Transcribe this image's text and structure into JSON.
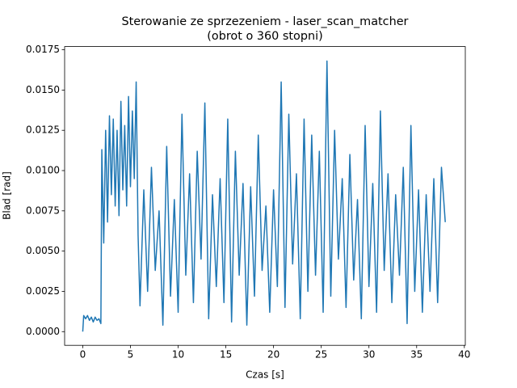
{
  "chart_data": {
    "type": "line",
    "title": "Sterowanie ze sprzezeniem - laser_scan_matcher",
    "subtitle": "(obrot o 360 stopni)",
    "x_label": "Czas [s]",
    "y_label": "Blad [rad]",
    "x": [
      0,
      0.1,
      0.3,
      0.5,
      0.7,
      0.9,
      1.1,
      1.3,
      1.5,
      1.7,
      1.9,
      2.0,
      2.2,
      2.4,
      2.6,
      2.8,
      3.0,
      3.2,
      3.4,
      3.6,
      3.8,
      4.0,
      4.2,
      4.4,
      4.6,
      4.8,
      5.0,
      5.2,
      5.4,
      5.6,
      5.8,
      6.0,
      6.4,
      6.8,
      7.2,
      7.6,
      8.0,
      8.4,
      8.8,
      9.2,
      9.6,
      10.0,
      10.4,
      10.8,
      11.2,
      11.6,
      12.0,
      12.4,
      12.8,
      13.2,
      13.6,
      14.0,
      14.4,
      14.8,
      15.2,
      15.6,
      16.0,
      16.4,
      16.8,
      17.2,
      17.6,
      18.0,
      18.4,
      18.8,
      19.2,
      19.6,
      20.0,
      20.4,
      20.8,
      21.2,
      21.6,
      22.0,
      22.4,
      22.8,
      23.2,
      23.6,
      24.0,
      24.4,
      24.8,
      25.2,
      25.6,
      26.0,
      26.4,
      26.8,
      27.2,
      27.6,
      28.0,
      28.4,
      28.8,
      29.2,
      29.6,
      30.0,
      30.4,
      30.8,
      31.2,
      31.6,
      32.0,
      32.4,
      32.8,
      33.2,
      33.6,
      34.0,
      34.4,
      34.8,
      35.2,
      35.6,
      36.0,
      36.4,
      36.8,
      37.2,
      37.6,
      38.0
    ],
    "series": [
      {
        "color": "#1f77b4",
        "values": [
          0,
          0.001,
          0.0008,
          0.001,
          0.0007,
          0.0009,
          0.0006,
          0.0009,
          0.0007,
          0.0008,
          0.0005,
          0.0113,
          0.0055,
          0.0125,
          0.0068,
          0.0134,
          0.0085,
          0.0132,
          0.0078,
          0.0125,
          0.0072,
          0.0143,
          0.0088,
          0.0128,
          0.0078,
          0.0146,
          0.009,
          0.0137,
          0.0095,
          0.0155,
          0.006,
          0.0016,
          0.0088,
          0.0025,
          0.0102,
          0.0038,
          0.0075,
          0.0004,
          0.0115,
          0.0022,
          0.0082,
          0.0012,
          0.0135,
          0.0035,
          0.0098,
          0.0018,
          0.0112,
          0.0045,
          0.0142,
          0.0008,
          0.0085,
          0.0028,
          0.0095,
          0.0018,
          0.0132,
          0.0006,
          0.0112,
          0.0035,
          0.0092,
          0.0004,
          0.009,
          0.0022,
          0.0122,
          0.0038,
          0.0078,
          0.0012,
          0.0088,
          0.0028,
          0.0155,
          0.0015,
          0.0135,
          0.0042,
          0.0098,
          0.0008,
          0.0132,
          0.0025,
          0.0122,
          0.0035,
          0.0112,
          0.0012,
          0.0168,
          0.0022,
          0.0125,
          0.0045,
          0.0095,
          0.0015,
          0.011,
          0.0032,
          0.0082,
          0.0008,
          0.0128,
          0.0028,
          0.0092,
          0.0012,
          0.0137,
          0.0038,
          0.0098,
          0.0018,
          0.0085,
          0.0035,
          0.0102,
          0.0005,
          0.0128,
          0.0025,
          0.0088,
          0.0012,
          0.0085,
          0.0025,
          0.0095,
          0.0018,
          0.0102,
          0.0068
        ]
      }
    ],
    "xlim": [
      -1.9,
      40.1
    ],
    "xticks": [
      0,
      5,
      10,
      15,
      20,
      25,
      30,
      35,
      40
    ],
    "ylim": [
      -0.00085,
      0.0177
    ],
    "yticks": [
      {
        "value": 0,
        "label": "0.0000"
      },
      {
        "value": 0.0025,
        "label": "0.0025"
      },
      {
        "value": 0.005,
        "label": "0.0050"
      },
      {
        "value": 0.0075,
        "label": "0.0075"
      },
      {
        "value": 0.01,
        "label": "0.0100"
      },
      {
        "value": 0.0125,
        "label": "0.0125"
      },
      {
        "value": 0.015,
        "label": "0.0150"
      },
      {
        "value": 0.0175,
        "label": "0.0175"
      }
    ]
  }
}
